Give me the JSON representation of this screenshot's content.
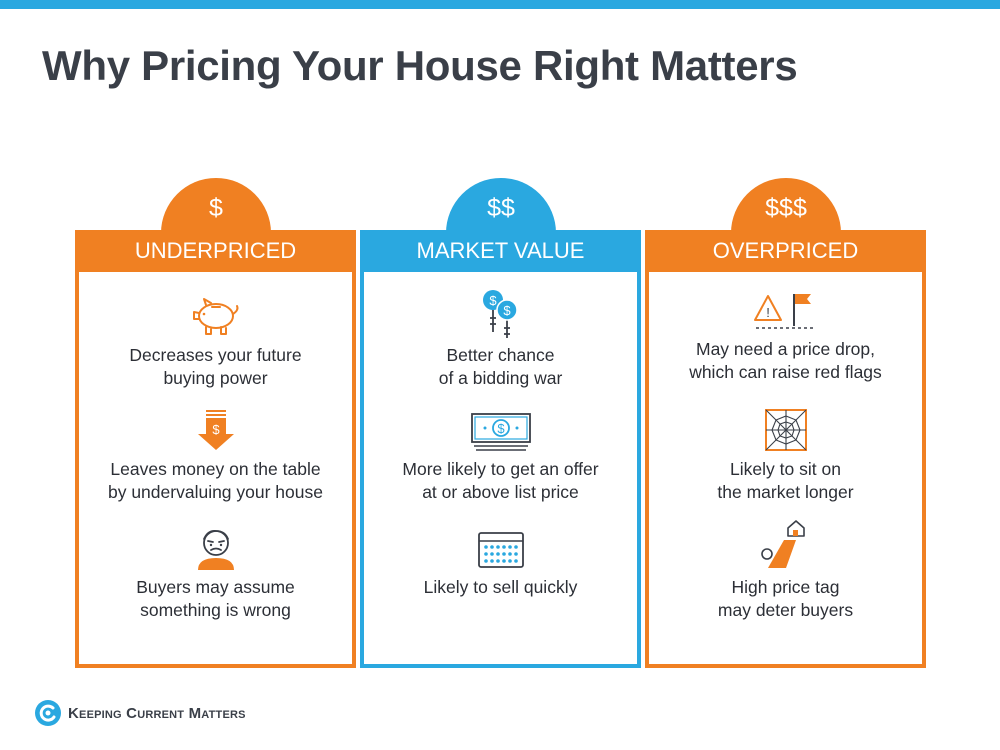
{
  "title": "Why Pricing Your House Right Matters",
  "columns": [
    {
      "symbol": "$",
      "heading": "UNDERPRICED",
      "color": "#f08022",
      "items": [
        {
          "icon": "piggy-bank-icon",
          "text": "Decreases your future\nbuying power"
        },
        {
          "icon": "money-down-arrow-icon",
          "text": "Leaves money on the table\nby undervaluing your house"
        },
        {
          "icon": "worried-face-icon",
          "text": "Buyers may assume\nsomething is wrong"
        }
      ]
    },
    {
      "symbol": "$$",
      "heading": "MARKET VALUE",
      "color": "#2aa8e0",
      "items": [
        {
          "icon": "bidding-paddles-icon",
          "text": "Better chance\nof a bidding war"
        },
        {
          "icon": "dollar-bill-icon",
          "text": "More likely to get an offer\nat or above list price"
        },
        {
          "icon": "calendar-icon",
          "text": "Likely to sell quickly"
        }
      ]
    },
    {
      "symbol": "$$$",
      "heading": "OVERPRICED",
      "color": "#f08022",
      "items": [
        {
          "icon": "warning-flag-icon",
          "text": "May need a price drop,\nwhich can raise red flags"
        },
        {
          "icon": "cobweb-icon",
          "text": "Likely to sit on\nthe market longer"
        },
        {
          "icon": "price-slide-icon",
          "text": "High price tag\nmay deter buyers"
        }
      ]
    }
  ],
  "brand": {
    "name": "Keeping Current Matters",
    "logo": "kcm-swirl-logo"
  }
}
